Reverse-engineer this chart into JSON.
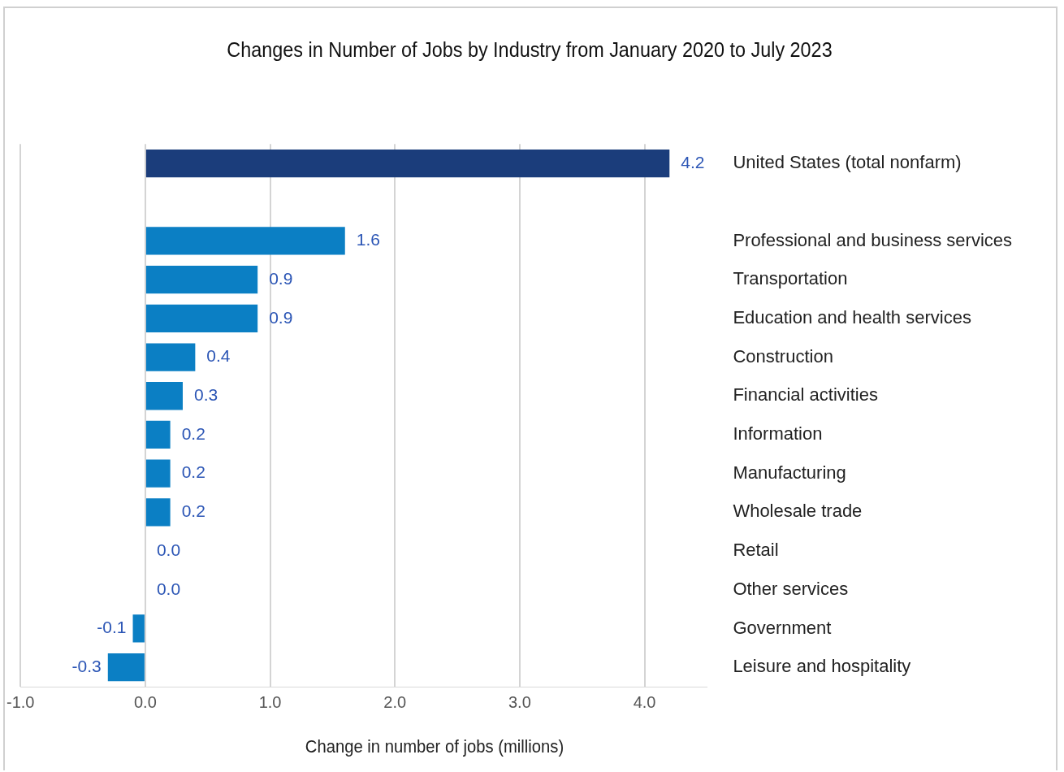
{
  "chart_data": {
    "type": "bar",
    "orientation": "horizontal",
    "title": "Changes in Number of Jobs by Industry from January 2020 to July 2023",
    "xlabel": "Change in number of jobs (millions)",
    "categories": [
      "United States (total nonfarm)",
      null,
      "Professional and business services",
      "Transportation",
      "Education and health services",
      "Construction",
      "Financial activities",
      "Information",
      "Manufacturing",
      "Wholesale trade",
      "Retail",
      "Other services",
      "Government",
      "Leisure and hospitality"
    ],
    "values": [
      4.2,
      null,
      1.6,
      0.9,
      0.9,
      0.4,
      0.3,
      0.2,
      0.2,
      0.2,
      0.0,
      0.0,
      -0.1,
      -0.3
    ],
    "value_labels": [
      "4.2",
      null,
      "1.6",
      "0.9",
      "0.9",
      "0.4",
      "0.3",
      "0.2",
      "0.2",
      "0.2",
      "0.0",
      "0.0",
      "-0.1",
      "-0.3"
    ],
    "colors": [
      "#1b3d7b",
      "#0b7fc4",
      "#0b7fc4",
      "#0b7fc4",
      "#0b7fc4",
      "#0b7fc4",
      "#0b7fc4",
      "#0b7fc4",
      "#0b7fc4",
      "#0b7fc4",
      "#0b7fc4",
      "#0b7fc4",
      "#0b7fc4",
      "#0b7fc4"
    ],
    "xlim": [
      -1,
      4.5
    ],
    "xticks": [
      {
        "value": -1,
        "label": "-1.0"
      },
      {
        "value": 0,
        "label": "0.0"
      },
      {
        "value": 1,
        "label": "1.0"
      },
      {
        "value": 2,
        "label": "2.0"
      },
      {
        "value": 3,
        "label": "3.0"
      },
      {
        "value": 4,
        "label": "4.0"
      }
    ],
    "grid": "x",
    "legend": false
  }
}
